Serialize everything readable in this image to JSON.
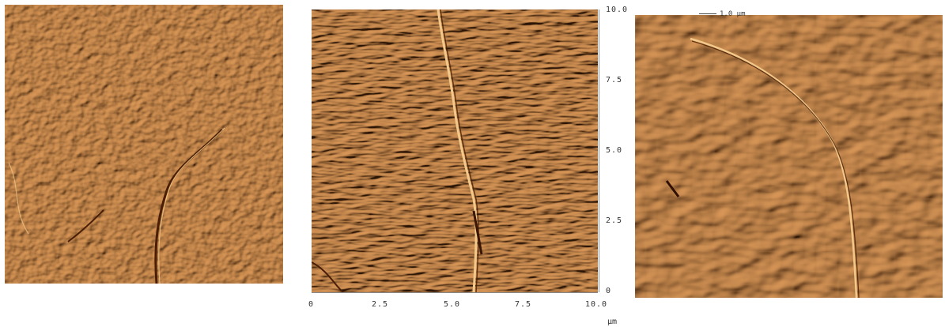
{
  "panels": [
    {
      "name": "afm-image-left",
      "texture": "grainy-with-ridge"
    },
    {
      "name": "afm-image-middle",
      "texture": "dense-lamellae"
    },
    {
      "name": "afm-image-right",
      "texture": "coarse-lamellae"
    }
  ],
  "colors": {
    "base": "#a8551c",
    "highlight": "#f2c98a",
    "shadow": "#4a1e05"
  },
  "axis": {
    "y_ticks": [
      "10.0",
      "7.5",
      "5.0",
      "2.5",
      "0"
    ],
    "x_ticks": [
      "0",
      "2.5",
      "5.0",
      "7.5",
      "10.0"
    ],
    "unit": "μm"
  },
  "scale_bar": {
    "label": "1.0 μm"
  }
}
